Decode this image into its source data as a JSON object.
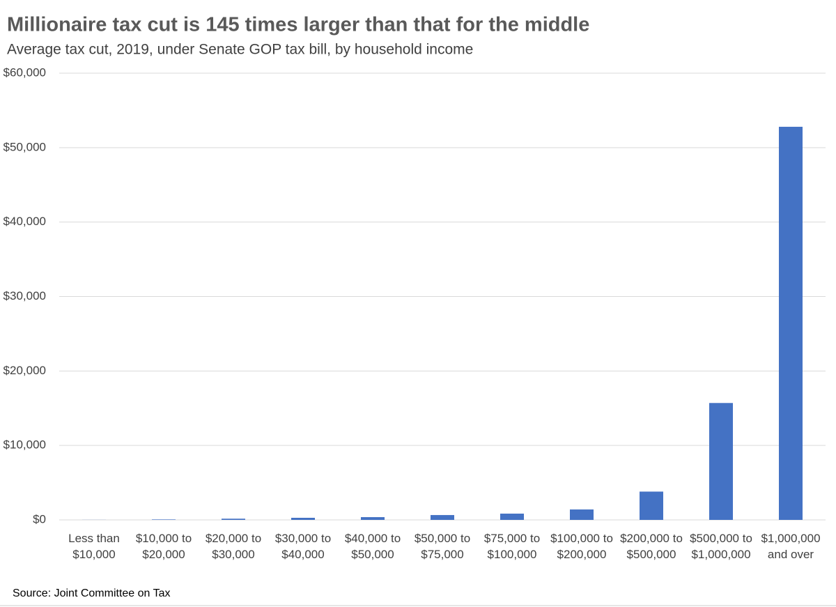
{
  "chart_data": {
    "type": "bar",
    "title": "Millionaire tax cut is 145 times larger than that for the middle",
    "subtitle": "Average tax cut, 2019, under Senate GOP tax bill, by household income",
    "source": "Source: Joint Committee on Tax",
    "categories": [
      "Less than $10,000",
      "$10,000 to $20,000",
      "$20,000 to $30,000",
      "$30,000 to $40,000",
      "$40,000 to $50,000",
      "$50,000 to $75,000",
      "$75,000 to $100,000",
      "$100,000 to $200,000",
      "$200,000 to $500,000",
      "$500,000 to $1,000,000",
      "$1,000,000 and over"
    ],
    "values": [
      10,
      60,
      160,
      280,
      370,
      650,
      840,
      1400,
      3800,
      15700,
      52800
    ],
    "color": "#4472c4",
    "ylim": [
      0,
      60000
    ],
    "yticks": [
      {
        "value": 0,
        "label": "$0"
      },
      {
        "value": 10000,
        "label": "$10,000"
      },
      {
        "value": 20000,
        "label": "$20,000"
      },
      {
        "value": 30000,
        "label": "$30,000"
      },
      {
        "value": 40000,
        "label": "$40,000"
      },
      {
        "value": 50000,
        "label": "$50,000"
      },
      {
        "value": 60000,
        "label": "$60,000"
      }
    ],
    "grid": true
  }
}
